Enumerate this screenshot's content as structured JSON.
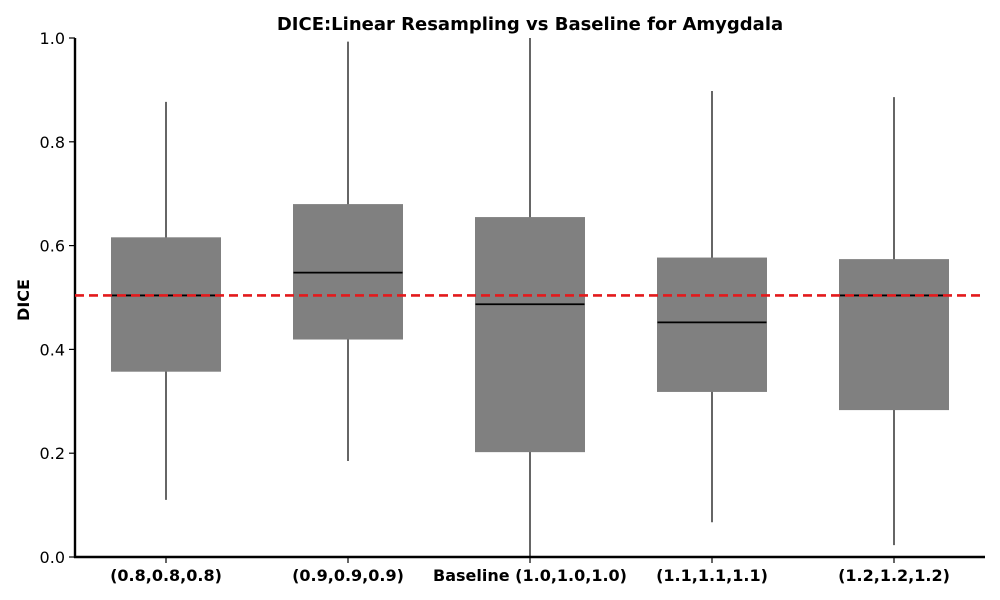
{
  "chart_data": {
    "type": "box",
    "title": "DICE:Linear Resampling vs Baseline for Amygdala",
    "xlabel": "",
    "ylabel": "DICE",
    "ylim": [
      0.0,
      1.0
    ],
    "yticks": [
      "0.0",
      "0.2",
      "0.4",
      "0.6",
      "0.8",
      "1.0"
    ],
    "grid": false,
    "categories": [
      "(0.8,0.8,0.8)",
      "(0.9,0.9,0.9)",
      "Baseline (1.0,1.0,1.0)",
      "(1.1,1.1,1.1)",
      "(1.2,1.2,1.2)"
    ],
    "boxes": [
      {
        "whisker_low": 0.11,
        "q1": 0.358,
        "median": 0.504,
        "q3": 0.615,
        "whisker_high": 0.877
      },
      {
        "whisker_low": 0.185,
        "q1": 0.42,
        "median": 0.548,
        "q3": 0.679,
        "whisker_high": 0.993
      },
      {
        "whisker_low": 0.0,
        "q1": 0.203,
        "median": 0.487,
        "q3": 0.654,
        "whisker_high": 1.0
      },
      {
        "whisker_low": 0.067,
        "q1": 0.319,
        "median": 0.452,
        "q3": 0.576,
        "whisker_high": 0.898
      },
      {
        "whisker_low": 0.023,
        "q1": 0.284,
        "median": 0.504,
        "q3": 0.573,
        "whisker_high": 0.886
      }
    ],
    "reference_line": {
      "value": 0.504,
      "style": "dashed"
    },
    "colors": {
      "box_fill": "#808080",
      "median": "#000000",
      "whisker": "#000000",
      "reference": "#e31a1c",
      "axis": "#000000"
    }
  }
}
